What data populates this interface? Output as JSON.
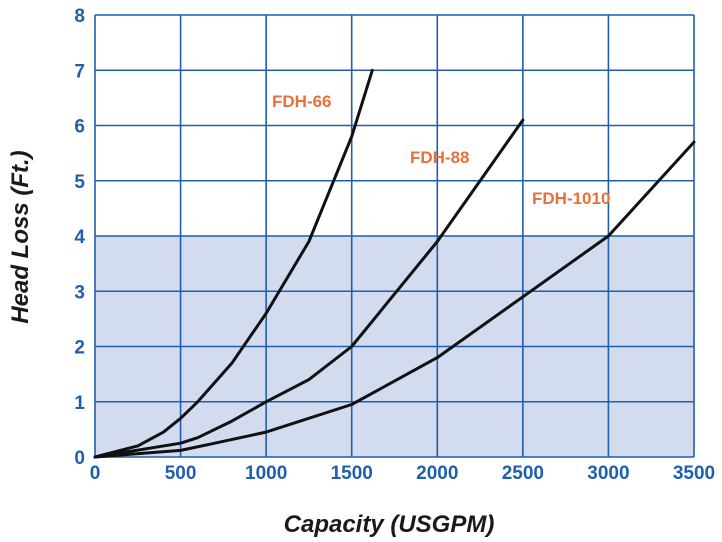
{
  "chart_data": {
    "type": "line",
    "title": "",
    "xlabel": "Capacity  (USGPM)",
    "ylabel": "Head Loss (Ft.)",
    "xlim": [
      0,
      3500
    ],
    "ylim": [
      0,
      8
    ],
    "x_ticks": [
      0,
      500,
      1000,
      1500,
      2000,
      2500,
      3000,
      3500
    ],
    "y_ticks": [
      0,
      1,
      2,
      3,
      4,
      5,
      6,
      7,
      8
    ],
    "grid": true,
    "shaded_band": {
      "y_from": 0,
      "y_to": 4
    },
    "series": [
      {
        "name": "FDH-66",
        "points": [
          [
            0,
            0
          ],
          [
            250,
            0.2
          ],
          [
            400,
            0.45
          ],
          [
            500,
            0.7
          ],
          [
            600,
            1.0
          ],
          [
            800,
            1.7
          ],
          [
            1000,
            2.6
          ],
          [
            1250,
            3.9
          ],
          [
            1500,
            5.8
          ],
          [
            1620,
            7.0
          ]
        ]
      },
      {
        "name": "FDH-88",
        "points": [
          [
            0,
            0
          ],
          [
            500,
            0.25
          ],
          [
            600,
            0.35
          ],
          [
            800,
            0.65
          ],
          [
            1000,
            1.0
          ],
          [
            1250,
            1.4
          ],
          [
            1500,
            2.0
          ],
          [
            2000,
            3.9
          ],
          [
            2500,
            6.1
          ]
        ]
      },
      {
        "name": "FDH-1010",
        "points": [
          [
            0,
            0
          ],
          [
            500,
            0.12
          ],
          [
            700,
            0.25
          ],
          [
            1000,
            0.45
          ],
          [
            1500,
            0.95
          ],
          [
            2000,
            1.8
          ],
          [
            2500,
            2.9
          ],
          [
            3000,
            4.0
          ],
          [
            3500,
            5.7
          ]
        ]
      }
    ]
  },
  "colors": {
    "grid": "#1f5fad",
    "tick_labels": "#1f5fad",
    "band": "#d3dbee",
    "curves": "#111111",
    "series_labels": "#e8703a",
    "axis_titles": "#1a1a1a"
  }
}
